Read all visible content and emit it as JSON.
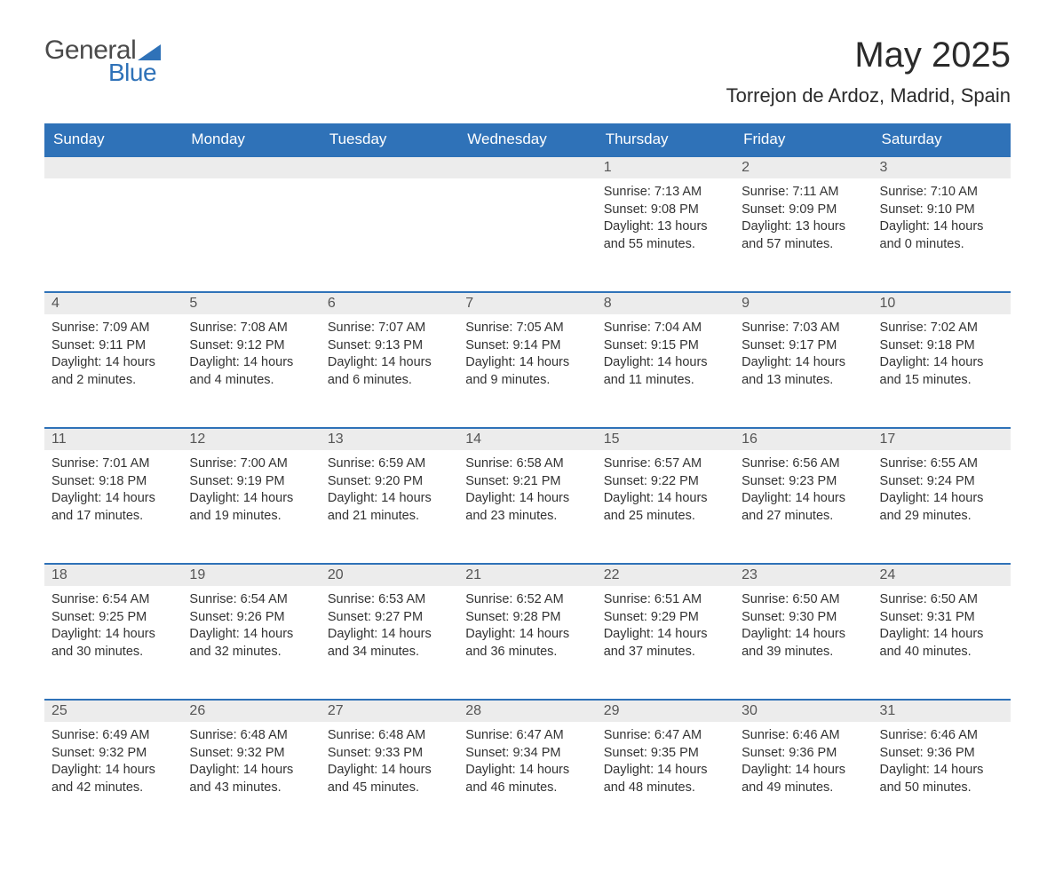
{
  "brand": {
    "word1": "General",
    "word2": "Blue"
  },
  "title": "May 2025",
  "location": "Torrejon de Ardoz, Madrid, Spain",
  "colors": {
    "header_bg": "#2f72b8",
    "header_text": "#ffffff",
    "daynum_bg": "#ececec",
    "daynum_text": "#555555",
    "body_text": "#333333",
    "page_bg": "#ffffff",
    "row_divider": "#2f72b8"
  },
  "fonts": {
    "title_size_pt": 30,
    "location_size_pt": 17,
    "header_size_pt": 13,
    "body_size_pt": 11
  },
  "weekdays": [
    "Sunday",
    "Monday",
    "Tuesday",
    "Wednesday",
    "Thursday",
    "Friday",
    "Saturday"
  ],
  "weeks": [
    [
      null,
      null,
      null,
      null,
      {
        "n": "1",
        "sunrise": "Sunrise: 7:13 AM",
        "sunset": "Sunset: 9:08 PM",
        "day1": "Daylight: 13 hours",
        "day2": "and 55 minutes."
      },
      {
        "n": "2",
        "sunrise": "Sunrise: 7:11 AM",
        "sunset": "Sunset: 9:09 PM",
        "day1": "Daylight: 13 hours",
        "day2": "and 57 minutes."
      },
      {
        "n": "3",
        "sunrise": "Sunrise: 7:10 AM",
        "sunset": "Sunset: 9:10 PM",
        "day1": "Daylight: 14 hours",
        "day2": "and 0 minutes."
      }
    ],
    [
      {
        "n": "4",
        "sunrise": "Sunrise: 7:09 AM",
        "sunset": "Sunset: 9:11 PM",
        "day1": "Daylight: 14 hours",
        "day2": "and 2 minutes."
      },
      {
        "n": "5",
        "sunrise": "Sunrise: 7:08 AM",
        "sunset": "Sunset: 9:12 PM",
        "day1": "Daylight: 14 hours",
        "day2": "and 4 minutes."
      },
      {
        "n": "6",
        "sunrise": "Sunrise: 7:07 AM",
        "sunset": "Sunset: 9:13 PM",
        "day1": "Daylight: 14 hours",
        "day2": "and 6 minutes."
      },
      {
        "n": "7",
        "sunrise": "Sunrise: 7:05 AM",
        "sunset": "Sunset: 9:14 PM",
        "day1": "Daylight: 14 hours",
        "day2": "and 9 minutes."
      },
      {
        "n": "8",
        "sunrise": "Sunrise: 7:04 AM",
        "sunset": "Sunset: 9:15 PM",
        "day1": "Daylight: 14 hours",
        "day2": "and 11 minutes."
      },
      {
        "n": "9",
        "sunrise": "Sunrise: 7:03 AM",
        "sunset": "Sunset: 9:17 PM",
        "day1": "Daylight: 14 hours",
        "day2": "and 13 minutes."
      },
      {
        "n": "10",
        "sunrise": "Sunrise: 7:02 AM",
        "sunset": "Sunset: 9:18 PM",
        "day1": "Daylight: 14 hours",
        "day2": "and 15 minutes."
      }
    ],
    [
      {
        "n": "11",
        "sunrise": "Sunrise: 7:01 AM",
        "sunset": "Sunset: 9:18 PM",
        "day1": "Daylight: 14 hours",
        "day2": "and 17 minutes."
      },
      {
        "n": "12",
        "sunrise": "Sunrise: 7:00 AM",
        "sunset": "Sunset: 9:19 PM",
        "day1": "Daylight: 14 hours",
        "day2": "and 19 minutes."
      },
      {
        "n": "13",
        "sunrise": "Sunrise: 6:59 AM",
        "sunset": "Sunset: 9:20 PM",
        "day1": "Daylight: 14 hours",
        "day2": "and 21 minutes."
      },
      {
        "n": "14",
        "sunrise": "Sunrise: 6:58 AM",
        "sunset": "Sunset: 9:21 PM",
        "day1": "Daylight: 14 hours",
        "day2": "and 23 minutes."
      },
      {
        "n": "15",
        "sunrise": "Sunrise: 6:57 AM",
        "sunset": "Sunset: 9:22 PM",
        "day1": "Daylight: 14 hours",
        "day2": "and 25 minutes."
      },
      {
        "n": "16",
        "sunrise": "Sunrise: 6:56 AM",
        "sunset": "Sunset: 9:23 PM",
        "day1": "Daylight: 14 hours",
        "day2": "and 27 minutes."
      },
      {
        "n": "17",
        "sunrise": "Sunrise: 6:55 AM",
        "sunset": "Sunset: 9:24 PM",
        "day1": "Daylight: 14 hours",
        "day2": "and 29 minutes."
      }
    ],
    [
      {
        "n": "18",
        "sunrise": "Sunrise: 6:54 AM",
        "sunset": "Sunset: 9:25 PM",
        "day1": "Daylight: 14 hours",
        "day2": "and 30 minutes."
      },
      {
        "n": "19",
        "sunrise": "Sunrise: 6:54 AM",
        "sunset": "Sunset: 9:26 PM",
        "day1": "Daylight: 14 hours",
        "day2": "and 32 minutes."
      },
      {
        "n": "20",
        "sunrise": "Sunrise: 6:53 AM",
        "sunset": "Sunset: 9:27 PM",
        "day1": "Daylight: 14 hours",
        "day2": "and 34 minutes."
      },
      {
        "n": "21",
        "sunrise": "Sunrise: 6:52 AM",
        "sunset": "Sunset: 9:28 PM",
        "day1": "Daylight: 14 hours",
        "day2": "and 36 minutes."
      },
      {
        "n": "22",
        "sunrise": "Sunrise: 6:51 AM",
        "sunset": "Sunset: 9:29 PM",
        "day1": "Daylight: 14 hours",
        "day2": "and 37 minutes."
      },
      {
        "n": "23",
        "sunrise": "Sunrise: 6:50 AM",
        "sunset": "Sunset: 9:30 PM",
        "day1": "Daylight: 14 hours",
        "day2": "and 39 minutes."
      },
      {
        "n": "24",
        "sunrise": "Sunrise: 6:50 AM",
        "sunset": "Sunset: 9:31 PM",
        "day1": "Daylight: 14 hours",
        "day2": "and 40 minutes."
      }
    ],
    [
      {
        "n": "25",
        "sunrise": "Sunrise: 6:49 AM",
        "sunset": "Sunset: 9:32 PM",
        "day1": "Daylight: 14 hours",
        "day2": "and 42 minutes."
      },
      {
        "n": "26",
        "sunrise": "Sunrise: 6:48 AM",
        "sunset": "Sunset: 9:32 PM",
        "day1": "Daylight: 14 hours",
        "day2": "and 43 minutes."
      },
      {
        "n": "27",
        "sunrise": "Sunrise: 6:48 AM",
        "sunset": "Sunset: 9:33 PM",
        "day1": "Daylight: 14 hours",
        "day2": "and 45 minutes."
      },
      {
        "n": "28",
        "sunrise": "Sunrise: 6:47 AM",
        "sunset": "Sunset: 9:34 PM",
        "day1": "Daylight: 14 hours",
        "day2": "and 46 minutes."
      },
      {
        "n": "29",
        "sunrise": "Sunrise: 6:47 AM",
        "sunset": "Sunset: 9:35 PM",
        "day1": "Daylight: 14 hours",
        "day2": "and 48 minutes."
      },
      {
        "n": "30",
        "sunrise": "Sunrise: 6:46 AM",
        "sunset": "Sunset: 9:36 PM",
        "day1": "Daylight: 14 hours",
        "day2": "and 49 minutes."
      },
      {
        "n": "31",
        "sunrise": "Sunrise: 6:46 AM",
        "sunset": "Sunset: 9:36 PM",
        "day1": "Daylight: 14 hours",
        "day2": "and 50 minutes."
      }
    ]
  ]
}
